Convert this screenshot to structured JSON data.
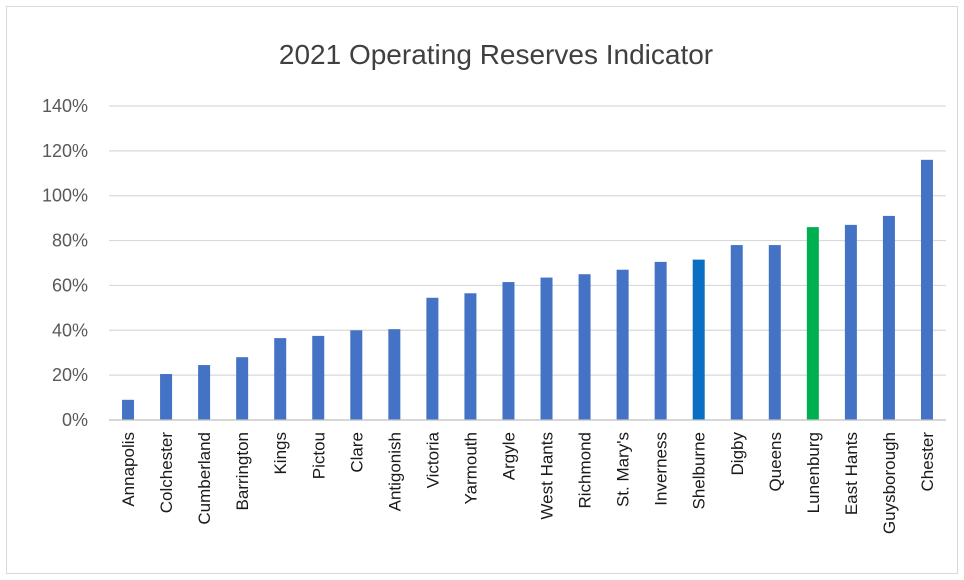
{
  "chart_data": {
    "type": "bar",
    "title": "2021 Operating Reserves Indicator",
    "xlabel": "",
    "ylabel": "",
    "ylim": [
      0,
      1.4
    ],
    "yticks": [
      "0%",
      "20%",
      "40%",
      "60%",
      "80%",
      "100%",
      "120%",
      "140%"
    ],
    "grid": true,
    "legend": "none",
    "categories": [
      "Annapolis",
      "Colchester",
      "Cumberland",
      "Barrington",
      "Kings",
      "Pictou",
      "Clare",
      "Antigonish",
      "Victoria",
      "Yarmouth",
      "Argyle",
      "West Hants",
      "Richmond",
      "St. Mary's",
      "Inverness",
      "Shelburne",
      "Digby",
      "Queens",
      "Lunenburg",
      "East Hants",
      "Guysborough",
      "Chester"
    ],
    "values": [
      0.09,
      0.205,
      0.245,
      0.28,
      0.365,
      0.375,
      0.4,
      0.405,
      0.545,
      0.565,
      0.615,
      0.635,
      0.65,
      0.67,
      0.705,
      0.715,
      0.78,
      0.78,
      0.86,
      0.87,
      0.91,
      1.16
    ],
    "colors": {
      "default": "#4472c4",
      "Shelburne": "#0a6fc2",
      "Lunenburg": "#00b050"
    }
  }
}
